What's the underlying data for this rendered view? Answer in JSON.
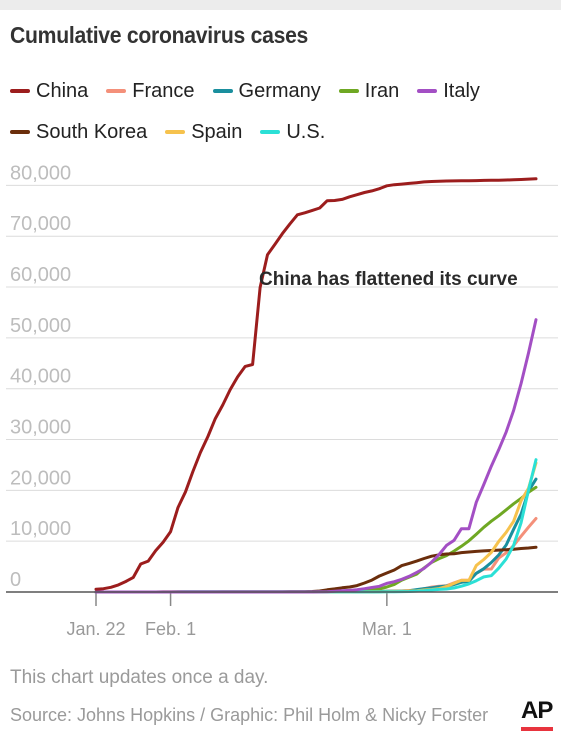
{
  "title": "Cumulative coronavirus cases",
  "footer_note": "This chart updates once a day.",
  "source": "Source: Johns Hopkins / Graphic: Phil Holm & Nicky Forster",
  "logo_text": "AP",
  "logo_accent": "#e8343e",
  "chart_data": {
    "type": "line",
    "title": "Cumulative coronavirus cases",
    "xlabel": "",
    "ylabel": "",
    "x_ticks": [
      "Jan. 22",
      "Feb. 1",
      "Mar. 1"
    ],
    "y_ticks": [
      "0",
      "10,000",
      "20,000",
      "30,000",
      "40,000",
      "50,000",
      "60,000",
      "70,000",
      "80,000"
    ],
    "ylim": [
      0,
      85000
    ],
    "grid": "horizontal",
    "legend_position": "top",
    "annotation": "China has flattened its curve",
    "x": [
      "Jan. 22",
      "Jan. 23",
      "Jan. 24",
      "Jan. 25",
      "Jan. 26",
      "Jan. 27",
      "Jan. 28",
      "Jan. 29",
      "Jan. 30",
      "Jan. 31",
      "Feb. 1",
      "Feb. 2",
      "Feb. 3",
      "Feb. 4",
      "Feb. 5",
      "Feb. 6",
      "Feb. 7",
      "Feb. 8",
      "Feb. 9",
      "Feb. 10",
      "Feb. 11",
      "Feb. 12",
      "Feb. 13",
      "Feb. 14",
      "Feb. 15",
      "Feb. 16",
      "Feb. 17",
      "Feb. 18",
      "Feb. 19",
      "Feb. 20",
      "Feb. 21",
      "Feb. 22",
      "Feb. 23",
      "Feb. 24",
      "Feb. 25",
      "Feb. 26",
      "Feb. 27",
      "Feb. 28",
      "Feb. 29",
      "Mar. 1",
      "Mar. 2",
      "Mar. 3",
      "Mar. 4",
      "Mar. 5",
      "Mar. 6",
      "Mar. 7",
      "Mar. 8",
      "Mar. 9",
      "Mar. 10",
      "Mar. 11",
      "Mar. 12",
      "Mar. 13",
      "Mar. 14",
      "Mar. 15",
      "Mar. 16",
      "Mar. 17",
      "Mar. 18",
      "Mar. 19",
      "Mar. 20",
      "Mar. 21"
    ],
    "series": [
      {
        "name": "China",
        "color": "#9c1d1d",
        "values": [
          548,
          643,
          920,
          1406,
          2075,
          2877,
          5509,
          6087,
          8141,
          9802,
          11891,
          16630,
          19716,
          23707,
          27440,
          30587,
          34110,
          36814,
          39829,
          42354,
          44386,
          44759,
          59895,
          66358,
          68413,
          70513,
          72434,
          74211,
          74619,
          75077,
          75550,
          77001,
          77022,
          77241,
          77754,
          78166,
          78600,
          78928,
          79356,
          79932,
          80136,
          80261,
          80386,
          80537,
          80690,
          80770,
          80823,
          80860,
          80887,
          80921,
          80932,
          80945,
          80977,
          81003,
          81033,
          81058,
          81102,
          81156,
          81250,
          81305
        ]
      },
      {
        "name": "France",
        "color": "#f4907a",
        "values": [
          0,
          0,
          2,
          3,
          3,
          3,
          4,
          5,
          5,
          5,
          6,
          6,
          6,
          6,
          6,
          6,
          6,
          11,
          11,
          11,
          11,
          11,
          11,
          11,
          12,
          12,
          12,
          12,
          12,
          12,
          12,
          12,
          12,
          12,
          14,
          18,
          38,
          57,
          100,
          130,
          191,
          204,
          288,
          380,
          656,
          959,
          1136,
          1219,
          1794,
          2293,
          2293,
          3681,
          4496,
          4532,
          6683,
          7715,
          9124,
          10970,
          12758,
          14463
        ]
      },
      {
        "name": "Germany",
        "color": "#1a8f9e",
        "values": [
          0,
          0,
          0,
          0,
          0,
          1,
          4,
          4,
          4,
          5,
          8,
          10,
          12,
          12,
          12,
          12,
          13,
          13,
          14,
          14,
          16,
          16,
          16,
          16,
          16,
          16,
          16,
          16,
          16,
          16,
          16,
          16,
          16,
          16,
          17,
          27,
          46,
          48,
          79,
          130,
          159,
          196,
          262,
          482,
          670,
          799,
          1040,
          1176,
          1457,
          1908,
          2078,
          3675,
          4585,
          5795,
          7272,
          9257,
          12327,
          15320,
          19848,
          22213
        ]
      },
      {
        "name": "Iran",
        "color": "#6fa823",
        "values": [
          0,
          0,
          0,
          0,
          0,
          0,
          0,
          0,
          0,
          0,
          0,
          0,
          0,
          0,
          0,
          0,
          0,
          0,
          0,
          0,
          0,
          0,
          0,
          0,
          0,
          0,
          0,
          0,
          2,
          5,
          18,
          28,
          43,
          61,
          95,
          139,
          245,
          388,
          593,
          978,
          1501,
          2336,
          2922,
          3513,
          4747,
          5823,
          6566,
          7161,
          8042,
          9000,
          10075,
          11364,
          12729,
          13938,
          14991,
          16169,
          17361,
          18407,
          19644,
          20610
        ]
      },
      {
        "name": "Italy",
        "color": "#a34fc4",
        "values": [
          0,
          0,
          0,
          0,
          0,
          0,
          0,
          0,
          0,
          2,
          2,
          2,
          2,
          2,
          2,
          2,
          3,
          3,
          3,
          3,
          3,
          3,
          3,
          3,
          3,
          3,
          3,
          3,
          3,
          3,
          20,
          62,
          155,
          229,
          322,
          453,
          655,
          888,
          1128,
          1694,
          2036,
          2502,
          3089,
          3858,
          4636,
          5883,
          7375,
          9172,
          10149,
          12462,
          12462,
          17660,
          21157,
          24747,
          27980,
          31506,
          35713,
          41035,
          47021,
          53578
        ]
      },
      {
        "name": "South Korea",
        "color": "#6b2e0c",
        "values": [
          1,
          1,
          2,
          2,
          3,
          4,
          4,
          4,
          4,
          11,
          12,
          15,
          15,
          16,
          19,
          23,
          24,
          24,
          25,
          27,
          28,
          28,
          28,
          28,
          28,
          29,
          30,
          31,
          31,
          104,
          204,
          433,
          602,
          833,
          977,
          1261,
          1766,
          2337,
          3150,
          3736,
          4335,
          5186,
          5621,
          6088,
          6593,
          7041,
          7314,
          7478,
          7513,
          7755,
          7869,
          7979,
          8086,
          8162,
          8236,
          8320,
          8413,
          8565,
          8652,
          8799
        ]
      },
      {
        "name": "Spain",
        "color": "#f6c24d",
        "values": [
          0,
          0,
          0,
          0,
          0,
          0,
          0,
          0,
          0,
          0,
          1,
          1,
          1,
          1,
          1,
          1,
          1,
          1,
          2,
          2,
          2,
          2,
          2,
          2,
          2,
          2,
          2,
          2,
          2,
          2,
          2,
          2,
          2,
          2,
          6,
          13,
          15,
          32,
          45,
          84,
          120,
          165,
          222,
          259,
          400,
          500,
          673,
          1073,
          1695,
          2277,
          2277,
          5232,
          6391,
          7798,
          9942,
          11748,
          13910,
          17963,
          20410,
          25374
        ]
      },
      {
        "name": "U.S.",
        "color": "#2be0d6",
        "values": [
          1,
          1,
          2,
          2,
          5,
          5,
          5,
          5,
          5,
          7,
          8,
          8,
          11,
          11,
          11,
          12,
          12,
          12,
          12,
          12,
          13,
          13,
          14,
          14,
          14,
          14,
          14,
          14,
          14,
          14,
          16,
          16,
          16,
          16,
          16,
          16,
          17,
          17,
          25,
          32,
          55,
          74,
          107,
          184,
          237,
          403,
          519,
          594,
          782,
          1147,
          1586,
          2219,
          2978,
          3212,
          4679,
          6512,
          9169,
          13663,
          20030,
          26025
        ]
      }
    ]
  }
}
